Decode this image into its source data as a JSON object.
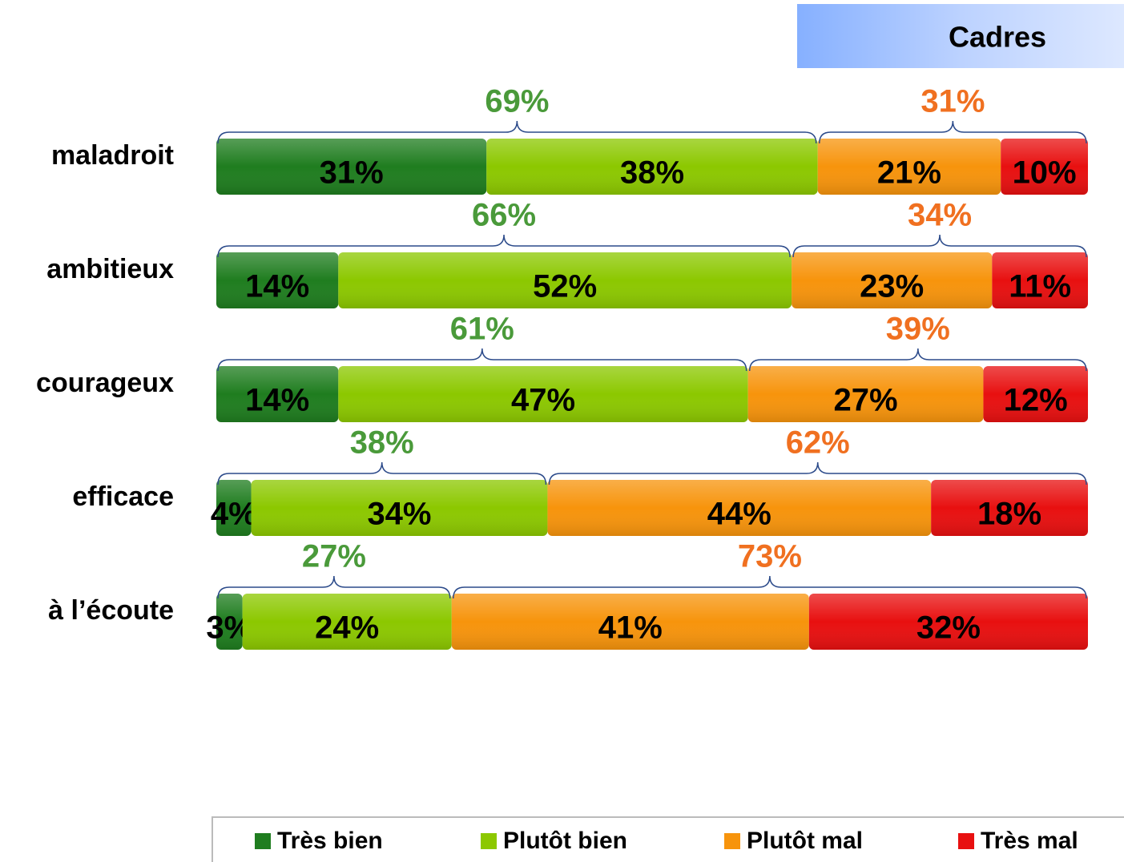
{
  "chart_data": {
    "type": "stacked_bar_horizontal",
    "title": "Cadres",
    "categories": [
      "maladroit",
      "ambitieux",
      "courageux",
      "efficace",
      "à l’écoute"
    ],
    "xlim": [
      0,
      100
    ],
    "series": [
      {
        "name": "Très bien",
        "color": "#1f7d1f",
        "values": [
          31,
          14,
          14,
          4,
          3
        ],
        "value_labels": [
          "31%",
          "14%",
          "14%",
          "4%",
          "3%"
        ]
      },
      {
        "name": "Plutôt bien",
        "color": "#8cc800",
        "values": [
          38,
          52,
          47,
          34,
          24
        ],
        "value_labels": [
          "38%",
          "52%",
          "47%",
          "34%",
          "24%"
        ]
      },
      {
        "name": "Plutôt mal",
        "color": "#f7940c",
        "values": [
          21,
          23,
          27,
          44,
          41
        ],
        "value_labels": [
          "21%",
          "23%",
          "27%",
          "44%",
          "41%"
        ]
      },
      {
        "name": "Très mal",
        "color": "#e81010",
        "values": [
          10,
          11,
          12,
          18,
          32
        ],
        "value_labels": [
          "10%",
          "11%",
          "12%",
          "18%",
          "32%"
        ]
      }
    ],
    "totals": [
      {
        "color": "#4a9a3a",
        "values": [
          69,
          66,
          61,
          38,
          27
        ],
        "value_labels": [
          "69%",
          "66%",
          "61%",
          "38%",
          "27%"
        ]
      },
      {
        "color": "#f07020",
        "values": [
          31,
          34,
          39,
          62,
          73
        ],
        "value_labels": [
          "31%",
          "34%",
          "39%",
          "62%",
          "73%"
        ]
      }
    ]
  }
}
